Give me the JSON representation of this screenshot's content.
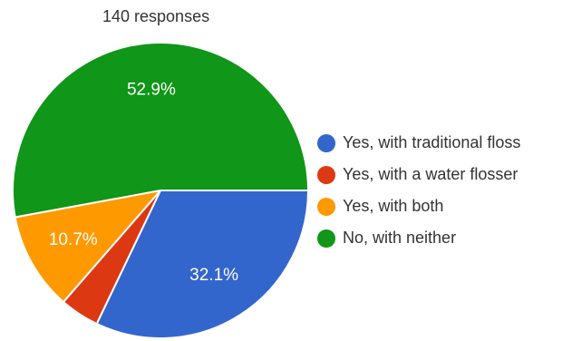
{
  "header": {
    "responses_label": "140 responses"
  },
  "chart_data": {
    "type": "pie",
    "total_responses": 140,
    "categories": [
      "Yes, with traditional floss",
      "Yes, with a water flosser",
      "Yes, with both",
      "No, with neither"
    ],
    "values": [
      32.1,
      4.3,
      10.7,
      52.9
    ],
    "value_labels": [
      "32.1%",
      "",
      "10.7%",
      "52.9%"
    ],
    "colors": [
      "#3366cc",
      "#dc3912",
      "#ff9900",
      "#109618"
    ],
    "legend_position": "right"
  }
}
